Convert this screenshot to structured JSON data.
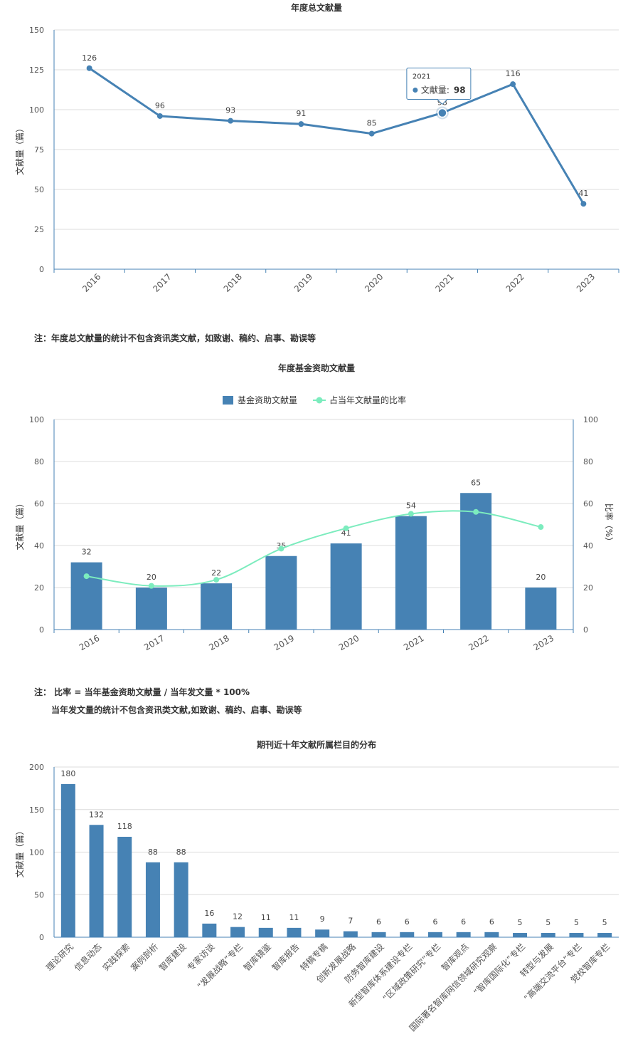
{
  "chart_data": [
    {
      "type": "line",
      "title": "年度总文献量",
      "ylabel": "文献量（篇）",
      "xlabel": "",
      "categories": [
        "2016",
        "2017",
        "2018",
        "2019",
        "2020",
        "2021",
        "2022",
        "2023"
      ],
      "series": [
        {
          "name": "文献量",
          "values": [
            126,
            96,
            93,
            91,
            85,
            98,
            116,
            41
          ],
          "color": "#4682b4"
        }
      ],
      "ylim": [
        0,
        150
      ],
      "yticks": [
        0,
        25,
        50,
        75,
        100,
        125,
        150
      ],
      "grid": true,
      "tooltip": {
        "title": "2021",
        "label": "文献量",
        "value": "98"
      }
    },
    {
      "type": "bar",
      "title": "年度基金资助文献量",
      "ylabel": "文献量（篇）",
      "y2label": "比率（%）",
      "categories": [
        "2016",
        "2017",
        "2018",
        "2019",
        "2020",
        "2021",
        "2022",
        "2023"
      ],
      "series": [
        {
          "name": "基金资助文献量",
          "type": "bar",
          "values": [
            32,
            20,
            22,
            35,
            41,
            54,
            65,
            20
          ],
          "color": "#4682b4"
        },
        {
          "name": "占当年文献量的比率",
          "type": "line",
          "values": [
            25.4,
            20.8,
            23.7,
            38.5,
            48.2,
            55.1,
            56.0,
            48.8
          ],
          "color": "#7cecbe"
        }
      ],
      "ylim": [
        0,
        100
      ],
      "y2lim": [
        0,
        100
      ],
      "yticks": [
        0,
        20,
        40,
        60,
        80,
        100
      ],
      "legend": "top-center",
      "grid": true
    },
    {
      "type": "bar",
      "title": "期刊近十年文献所属栏目的分布",
      "ylabel": "文献量（篇）",
      "categories": [
        "理论研究",
        "信息动态",
        "实践探索",
        "案例剖析",
        "智库建设",
        "专家访谈",
        "“发展战略”专栏",
        "智库镜鉴",
        "智库报告",
        "特稿专稿",
        "创新发展战略",
        "防务智库建设",
        "新型智库体系建设专栏",
        "“区域政策研究”专栏",
        "智库观点",
        "国际著名智库网信领域研究观察",
        "“智库国际化”专栏",
        "转型与发展",
        "“高端交流平台”专栏",
        "党校智库专栏"
      ],
      "values": [
        180,
        132,
        118,
        88,
        88,
        16,
        12,
        11,
        11,
        9,
        7,
        6,
        6,
        6,
        6,
        6,
        5,
        5,
        5,
        5
      ],
      "ylim": [
        0,
        200
      ],
      "yticks": [
        0,
        50,
        100,
        150,
        200
      ],
      "color": "#4682b4",
      "grid": true
    }
  ],
  "notes": {
    "note1": "注：年度总文献量的统计不包含资讯类文献，如致谢、稿约、启事、勘误等",
    "note2_line1": "注：   比率 = 当年基金资助文献量 / 当年发文量 * 100%",
    "note2_line2": "当年发文量的统计不包含资讯类文献,如致谢、稿约、启事、勘误等"
  }
}
